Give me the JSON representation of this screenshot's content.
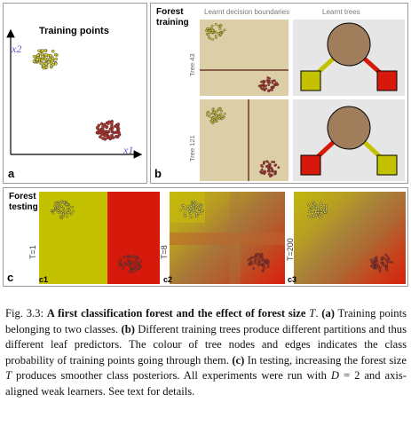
{
  "panel_a": {
    "title": "Training points",
    "ylabel": "x2",
    "xlabel": "x1",
    "letter": "a"
  },
  "panel_b": {
    "title_line1": "Forest",
    "title_line2": "training",
    "col1_header": "Learnt decision boundaries",
    "col2_header": "Learnt trees",
    "tree1_label": "Tree 43",
    "tree2_label": "Tree 121",
    "letter": "b"
  },
  "panel_c": {
    "title_line1": "Forest",
    "title_line2": "testing",
    "letter": "c",
    "sub1_label": "T=1",
    "sub2_label": "T=8",
    "sub3_label": "T=200",
    "sub1_letter": "c1",
    "sub2_letter": "c2",
    "sub3_letter": "c3"
  },
  "colors": {
    "yellow_class": "#c4c200",
    "red_class": "#d6190b",
    "root_node": "#a07d5b",
    "background_tan": "#dccea7"
  },
  "caption": {
    "fig_number": "Fig. 3.3:",
    "fig_title": "A first classification forest and the effect of forest size",
    "T_var": "T",
    "part_a_label": "(a)",
    "part_a_text": "Training points belonging to two classes.",
    "part_b_label": "(b)",
    "part_b_text": "Different training trees produce different partitions and thus different leaf predictors. The colour of tree nodes and edges indicates the class probability of training points going through them.",
    "part_c_label": "(c)",
    "part_c_text1": "In testing, increasing the forest size",
    "part_c_text2": "produces smoother class posteriors. All experiments were run with",
    "D_var": "D",
    "part_c_text3": "= 2 and axis-aligned weak learners. See text for details."
  }
}
